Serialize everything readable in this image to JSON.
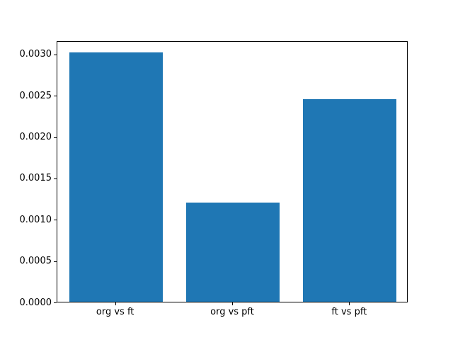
{
  "figure": {
    "background": "#ffffff"
  },
  "chart_data": {
    "type": "bar",
    "categories": [
      "org vs ft",
      "org vs pft",
      "ft vs pft"
    ],
    "values": [
      0.00302,
      0.0012,
      0.00245
    ],
    "title": "",
    "xlabel": "",
    "ylabel": "",
    "ylim": [
      0,
      0.003162
    ],
    "yticks": [
      0.0,
      0.0005,
      0.001,
      0.0015,
      0.002,
      0.0025,
      0.003
    ],
    "ytick_labels": [
      "0.0000",
      "0.0005",
      "0.0010",
      "0.0015",
      "0.0020",
      "0.0025",
      "0.0030"
    ],
    "bar_color": "#1f77b4",
    "bar_width_fraction": 0.8,
    "grid": false,
    "legend": false
  }
}
